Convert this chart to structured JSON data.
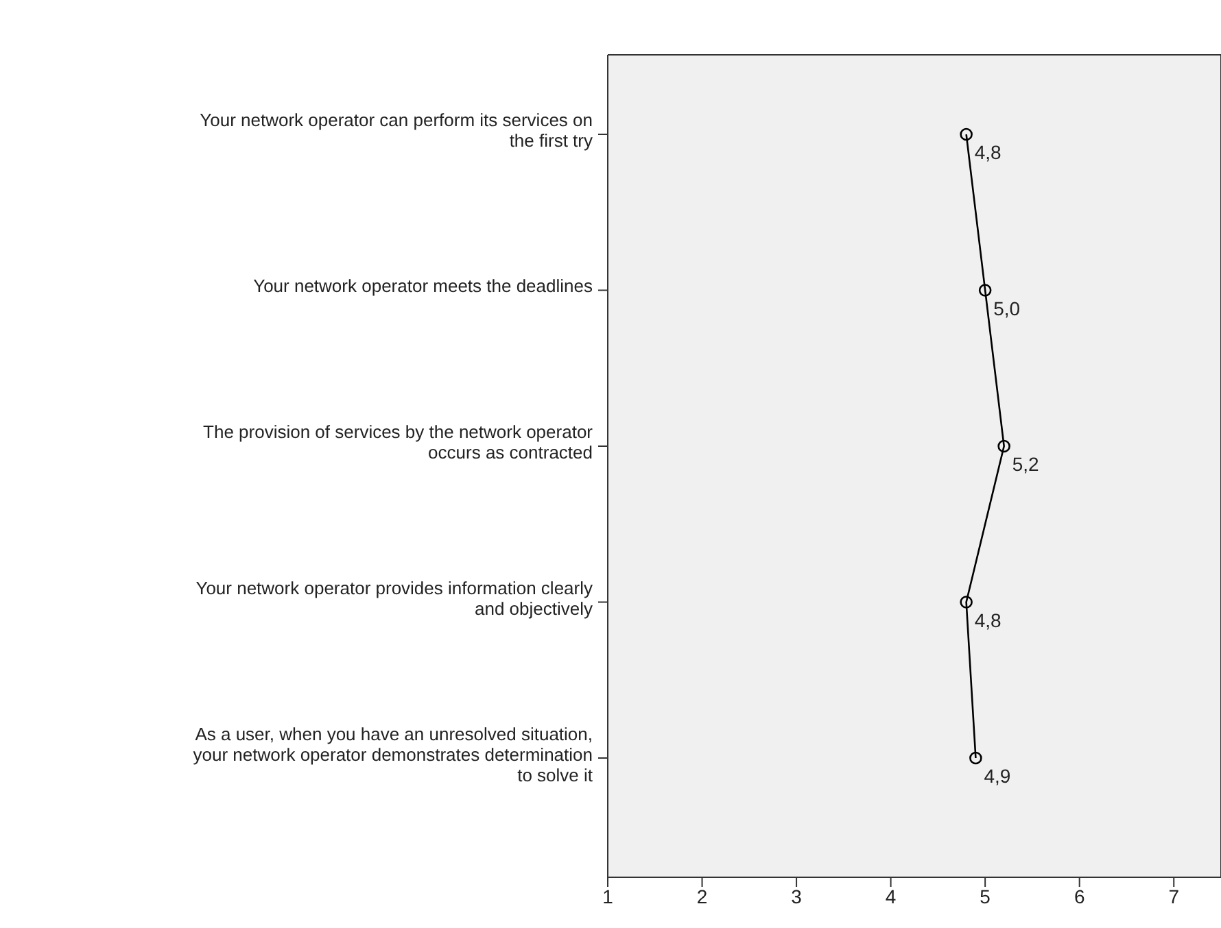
{
  "chart_data": {
    "type": "line",
    "orientation": "horizontal",
    "categories": [
      "Your network operator can perform its services on the first try",
      "Your network operator meets the deadlines",
      "The provision of services by the network operator occurs as contracted",
      "Your network operator provides information clearly and objectively",
      "As a user, when you have an unresolved situation, your network operator demonstrates determination to solve it"
    ],
    "values": [
      4.8,
      5.0,
      5.2,
      4.8,
      4.9
    ],
    "value_labels": [
      "4,8",
      "5,0",
      "5,2",
      "4,8",
      "4,9"
    ],
    "color": "#000000",
    "marker": "circle",
    "line_style": "solid",
    "xlim": [
      1,
      7.5
    ],
    "xticks": [
      1,
      2,
      3,
      4,
      5,
      6,
      7
    ],
    "grid": false
  }
}
